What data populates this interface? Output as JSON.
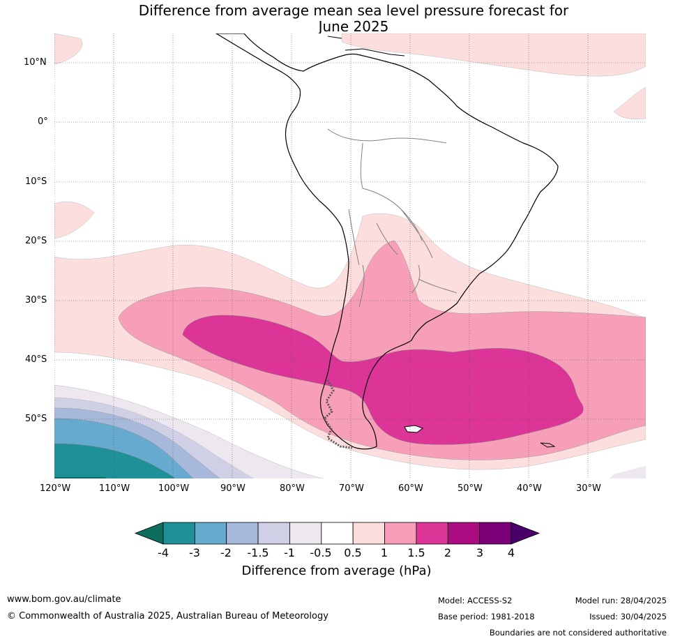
{
  "title": {
    "line1": "Difference from average mean sea level pressure forecast for",
    "line2": "June 2025"
  },
  "map": {
    "lat_labels": [
      "10°N",
      "0°",
      "10°S",
      "20°S",
      "30°S",
      "40°S",
      "50°S"
    ],
    "lon_labels": [
      "120°W",
      "110°W",
      "100°W",
      "90°W",
      "80°W",
      "70°W",
      "60°W",
      "50°W",
      "40°W",
      "30°W"
    ]
  },
  "colorbar": {
    "ticks": [
      "-4",
      "-3",
      "-2",
      "-1.5",
      "-1",
      "-0.5",
      "0.5",
      "1",
      "1.5",
      "2",
      "3",
      "4"
    ],
    "colors": [
      "#0e6e5e",
      "#1e9198",
      "#67aad0",
      "#a7b9da",
      "#cfd0e6",
      "#ede8ef",
      "#ffffff",
      "#fbdedd",
      "#f79fb8",
      "#dd3498",
      "#ac0c82",
      "#7b0077",
      "#4a006a"
    ],
    "label": "Difference from average (hPa)"
  },
  "footer": {
    "website": "www.bom.gov.au/climate",
    "copyright": "© Commonwealth of Australia 2025, Australian Bureau of Meteorology",
    "model": "Model: ACCESS-S2",
    "base_period": "Base period: 1981-2018",
    "model_run": "Model run: 28/04/2025",
    "issued": "Issued: 30/04/2025",
    "disclaimer": "Boundaries are not considered authoritative"
  }
}
